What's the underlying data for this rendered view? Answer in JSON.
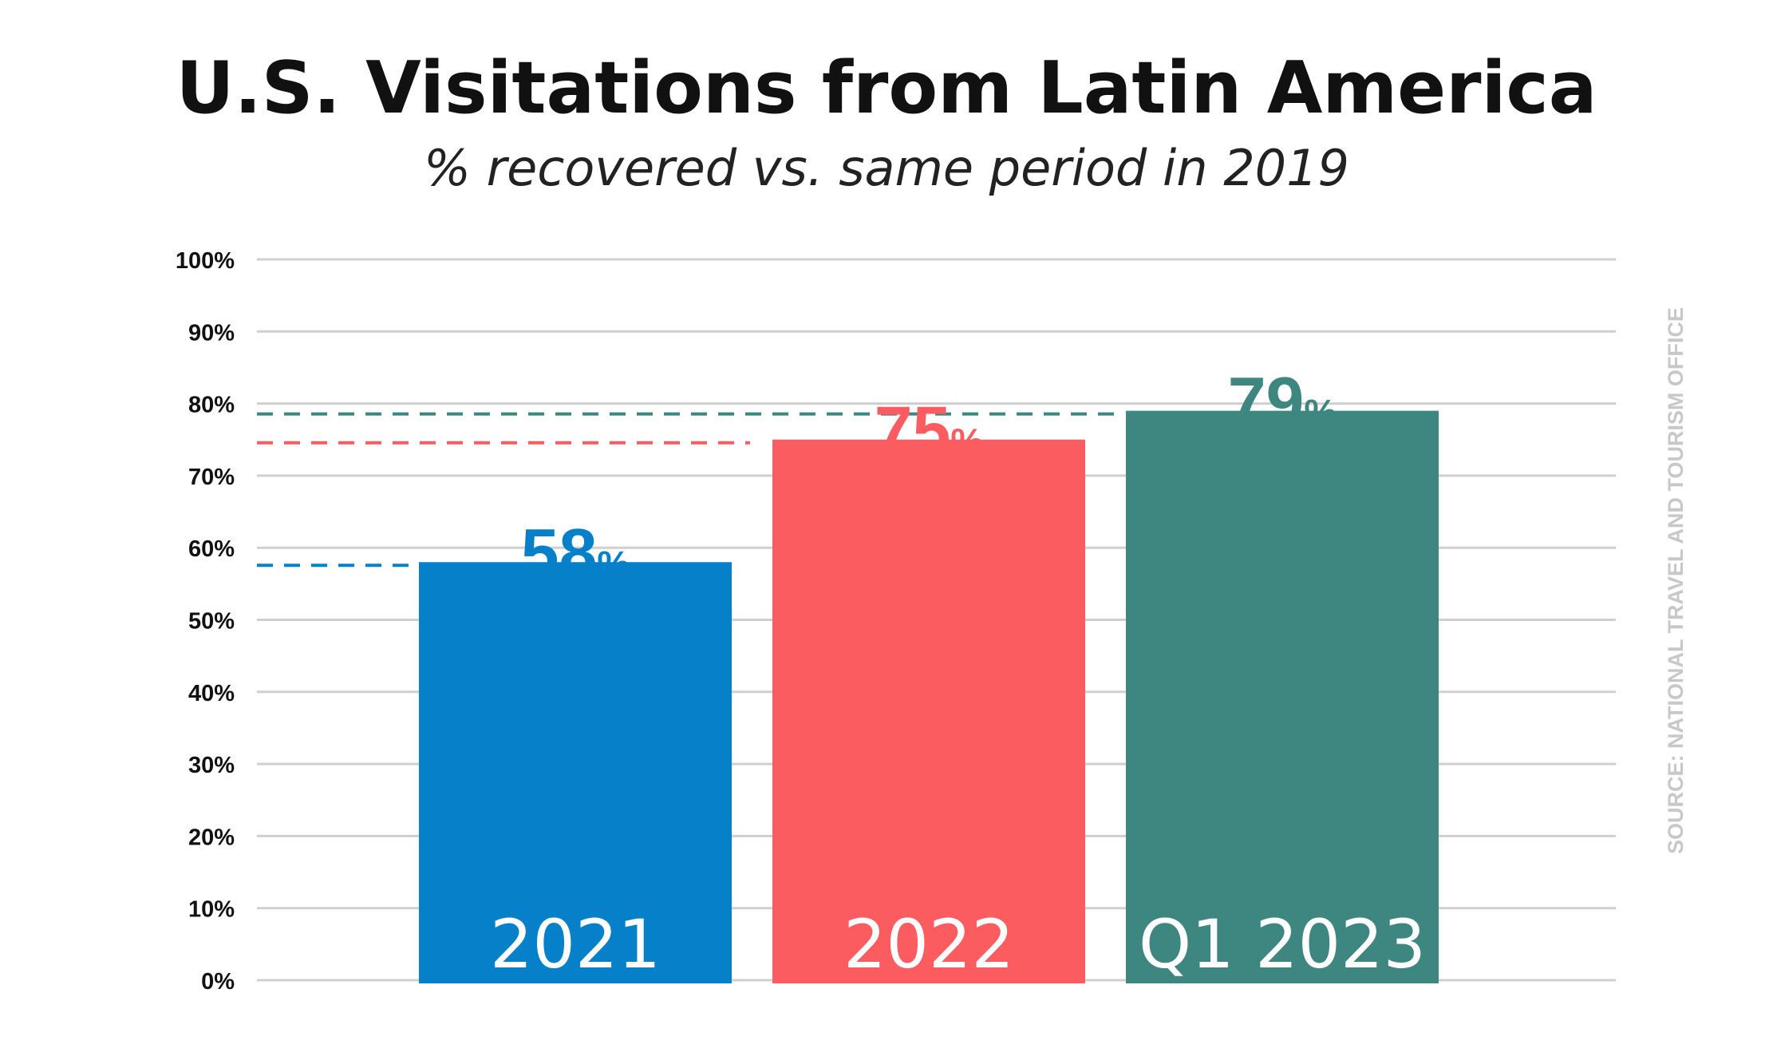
{
  "chart_data": {
    "type": "bar",
    "title": "U.S. Visitations from Latin America",
    "subtitle": "% recovered vs. same period in 2019",
    "categories": [
      "2021",
      "2022",
      "Q1 2023"
    ],
    "values": [
      58,
      75,
      79
    ],
    "value_labels": [
      "58",
      "75",
      "79"
    ],
    "value_suffix": "%",
    "colors": [
      "#0680c8",
      "#fa5c60",
      "#3e8680"
    ],
    "ylim": [
      0,
      100
    ],
    "yticks": [
      "0%",
      "10%",
      "20%",
      "30%",
      "40%",
      "50%",
      "60%",
      "70%",
      "80%",
      "90%",
      "100%"
    ],
    "grid": true,
    "reference_lines": "dashed line at each bar's value extending left",
    "source": "SOURCE: NATIONAL TRAVEL AND TOURISM OFFICE"
  }
}
